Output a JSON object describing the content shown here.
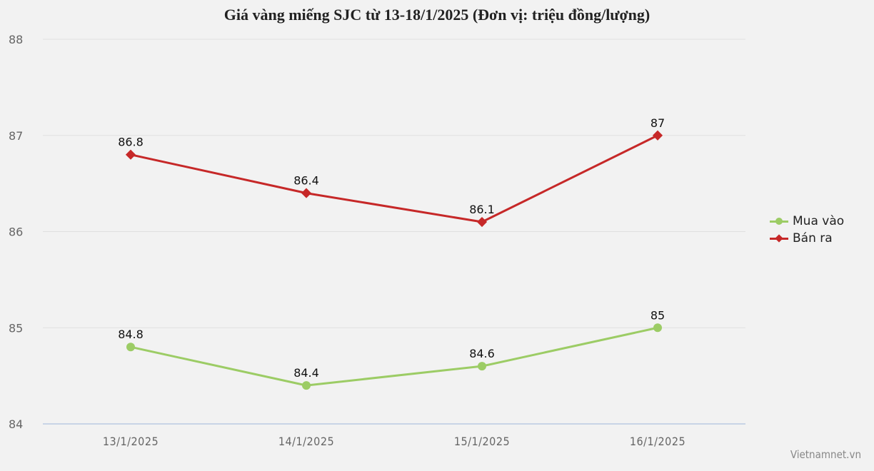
{
  "chart_data": {
    "type": "line",
    "title": "Giá vàng miếng SJC từ 13-18/1/2025 (Đơn vị: triệu đồng/lượng)",
    "xlabel": "",
    "ylabel": "",
    "categories": [
      "13/1/2025",
      "14/1/2025",
      "15/1/2025",
      "16/1/2025"
    ],
    "series": [
      {
        "name": "Mua vào",
        "color": "#9ccc65",
        "marker": "circle",
        "values": [
          84.8,
          84.4,
          84.6,
          85
        ]
      },
      {
        "name": "Bán ra",
        "color": "#c62828",
        "marker": "diamond",
        "values": [
          86.8,
          86.4,
          86.1,
          87
        ]
      }
    ],
    "ylim": [
      84,
      88
    ],
    "yticks": [
      84,
      85,
      86,
      87,
      88
    ],
    "grid": true,
    "legend_position": "right",
    "data_labels": true
  },
  "legend": {
    "items": [
      {
        "label": "Mua vào"
      },
      {
        "label": "Bán ra"
      }
    ]
  },
  "credit": "Vietnamnet.vn"
}
